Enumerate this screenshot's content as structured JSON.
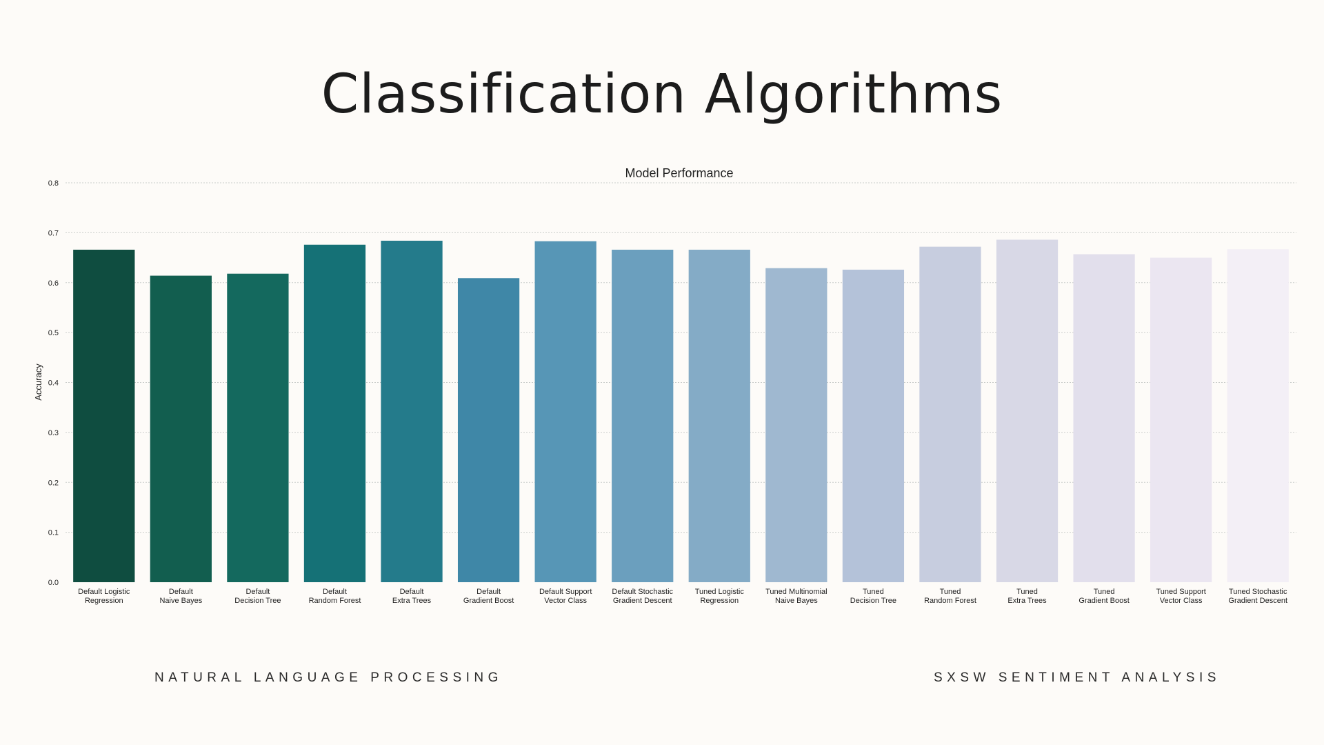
{
  "slide": {
    "title": "Classification Algorithms",
    "footer_left": "NATURAL LANGUAGE PROCESSING",
    "footer_right": "SXSW SENTIMENT ANALYSIS"
  },
  "chart_data": {
    "type": "bar",
    "title": "Model Performance",
    "xlabel": "",
    "ylabel": "Accuracy",
    "ylim": [
      0,
      0.8
    ],
    "yticks": [
      0.0,
      0.1,
      0.2,
      0.3,
      0.4,
      0.5,
      0.6,
      0.7,
      0.8
    ],
    "grid": true,
    "categories": [
      "Default Logistic\nRegression",
      "Default\nNaive Bayes",
      "Default\nDecision Tree",
      "Default\nRandom Forest",
      "Default\nExtra Trees",
      "Default\nGradient Boost",
      "Default Support\nVector Class",
      "Default Stochastic\nGradient Descent",
      "Tuned Logistic\nRegression",
      "Tuned Multinomial\nNaive Bayes",
      "Tuned\nDecision Tree",
      "Tuned\nRandom Forest",
      "Tuned\nExtra Trees",
      "Tuned\nGradient Boost",
      "Tuned Support\nVector Class",
      "Tuned Stochastic\nGradient Descent"
    ],
    "values": [
      0.666,
      0.614,
      0.618,
      0.676,
      0.684,
      0.609,
      0.683,
      0.666,
      0.666,
      0.629,
      0.626,
      0.672,
      0.686,
      0.657,
      0.65,
      0.667
    ],
    "colors": [
      "#0f4d40",
      "#125e4f",
      "#14695e",
      "#157176",
      "#247b8b",
      "#3f87a7",
      "#5796b6",
      "#6b9fbe",
      "#84abc6",
      "#9fb8d0",
      "#b4c2d9",
      "#c7cddf",
      "#d8d8e6",
      "#e2dfec",
      "#ebe6f1",
      "#f3eff6"
    ]
  }
}
